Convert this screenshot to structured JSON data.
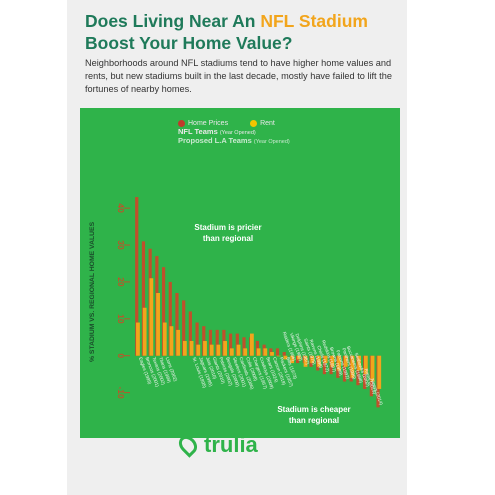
{
  "header": {
    "title_part1": "Does Living Near An ",
    "title_highlight": "NFL Stadium",
    "title_part2": "Boost Your Home Value?",
    "subtitle": "Neighborhoods around NFL stadiums tend to have higher home values and rents, but new stadiums built in the last decade, mostly have failed to lift the fortunes of nearby homes."
  },
  "legend": {
    "home_prices": "Home Prices",
    "rent": "Rent",
    "nfl_teams": "NFL Teams",
    "nfl_teams_note": "(Year Opened)",
    "proposed": "Proposed L.A Teams",
    "proposed_note": "(Year Opened)"
  },
  "annotations": {
    "pricier": [
      "Stadium is pricier",
      "than regional"
    ],
    "cheaper": [
      "Stadium is cheaper",
      "than regional"
    ]
  },
  "logo": {
    "text": "trulia"
  },
  "colors": {
    "field": "#2fb34a",
    "home_prices": "#c0502b",
    "rent": "#f2a51c",
    "title": "#1f7a5a",
    "highlight": "#f2a51c"
  },
  "chart_data": {
    "type": "bar",
    "ylabel": "% STADIUM VS. REGIONAL HOME VALUES",
    "ylim": [
      -12,
      46
    ],
    "yticks": [
      -10,
      0,
      10,
      20,
      30,
      40
    ],
    "categories": [
      "Eagles (1999)",
      "Broncos (2001)",
      "Texans (2002)",
      "Titans (1999)",
      "Lions (2002)",
      "",
      "",
      "",
      "St. Louis (1995)",
      "Jaguars (1995)",
      "Jets (2010)",
      "Giants (2010)",
      "Patriots (2002)",
      "Bengals (2000)",
      "Steelers (2001)",
      "Cardinals (2006)",
      "Colts (2008)",
      "Chargers (1967)",
      "Cowboys (2009)",
      "Bears (1924)",
      "Carson (2019)",
      "Packers (1957)",
      "Bills (1973)",
      "Raiders (1966)",
      "Vikings (1982)",
      "Dolphins (1987)",
      "Saints (1975)",
      "Ravens (1998)",
      "Chiefs (1972)",
      "Redskins (1997)",
      "Browns (1999)",
      "Falcons (1992)",
      "Panthers (1996)",
      "Buccaneers (1998)",
      "Seahawks (2002)",
      "Rams (2019)",
      "Niners (2014)"
    ],
    "series": [
      {
        "name": "Home Prices",
        "values": [
          43,
          31,
          29,
          27,
          24,
          20,
          17,
          15,
          12,
          9,
          8,
          7,
          7,
          7,
          6,
          6,
          5,
          5,
          4,
          3,
          2,
          2,
          1,
          0,
          -2,
          -2,
          -3,
          -4,
          -5,
          -5,
          -6,
          -7,
          -7,
          -8,
          -9,
          -11,
          -14
        ]
      },
      {
        "name": "Rent",
        "values": [
          9,
          13,
          21,
          17,
          9,
          8,
          7,
          4,
          4,
          3,
          4,
          3,
          3,
          4,
          2,
          3,
          2,
          6,
          2,
          2,
          1,
          0,
          -1,
          -2,
          -1,
          -3,
          -2,
          -3,
          -2,
          -3,
          -4,
          -3,
          -6,
          -4,
          -5,
          -7,
          -9
        ]
      }
    ]
  }
}
